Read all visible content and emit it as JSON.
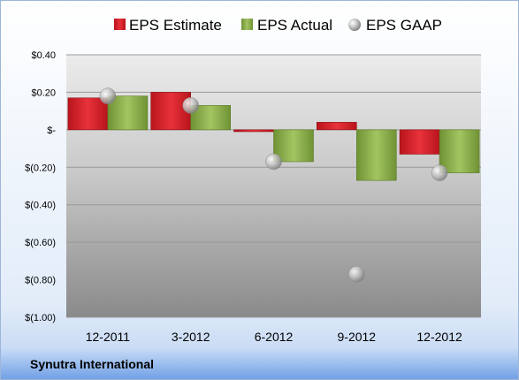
{
  "footer": {
    "company": "Synutra International"
  },
  "chart_data": {
    "type": "bar",
    "categories": [
      "12-2011",
      "3-2012",
      "6-2012",
      "9-2012",
      "12-2012"
    ],
    "series": [
      {
        "name": "EPS Estimate",
        "kind": "bar",
        "color": "#d42027",
        "values": [
          0.17,
          0.2,
          -0.01,
          0.04,
          -0.13
        ]
      },
      {
        "name": "EPS Actual",
        "kind": "bar",
        "color": "#8db04c",
        "values": [
          0.18,
          0.13,
          -0.17,
          -0.27,
          -0.23
        ]
      },
      {
        "name": "EPS GAAP",
        "kind": "marker",
        "color": "#b8b8b8",
        "values": [
          0.18,
          0.13,
          -0.17,
          -0.77,
          -0.23
        ]
      }
    ],
    "y_ticks": [
      0.4,
      0.2,
      0,
      -0.2,
      -0.4,
      -0.6,
      -0.8,
      -1.0
    ],
    "y_tick_labels": [
      "$0.40",
      "$0.20",
      "$-",
      "$(0.20)",
      "$(0.40)",
      "$(0.60)",
      "$(0.80)",
      "$(1.00)"
    ],
    "ylim": [
      -1.0,
      0.4
    ],
    "grid": true,
    "legend_position": "top"
  }
}
